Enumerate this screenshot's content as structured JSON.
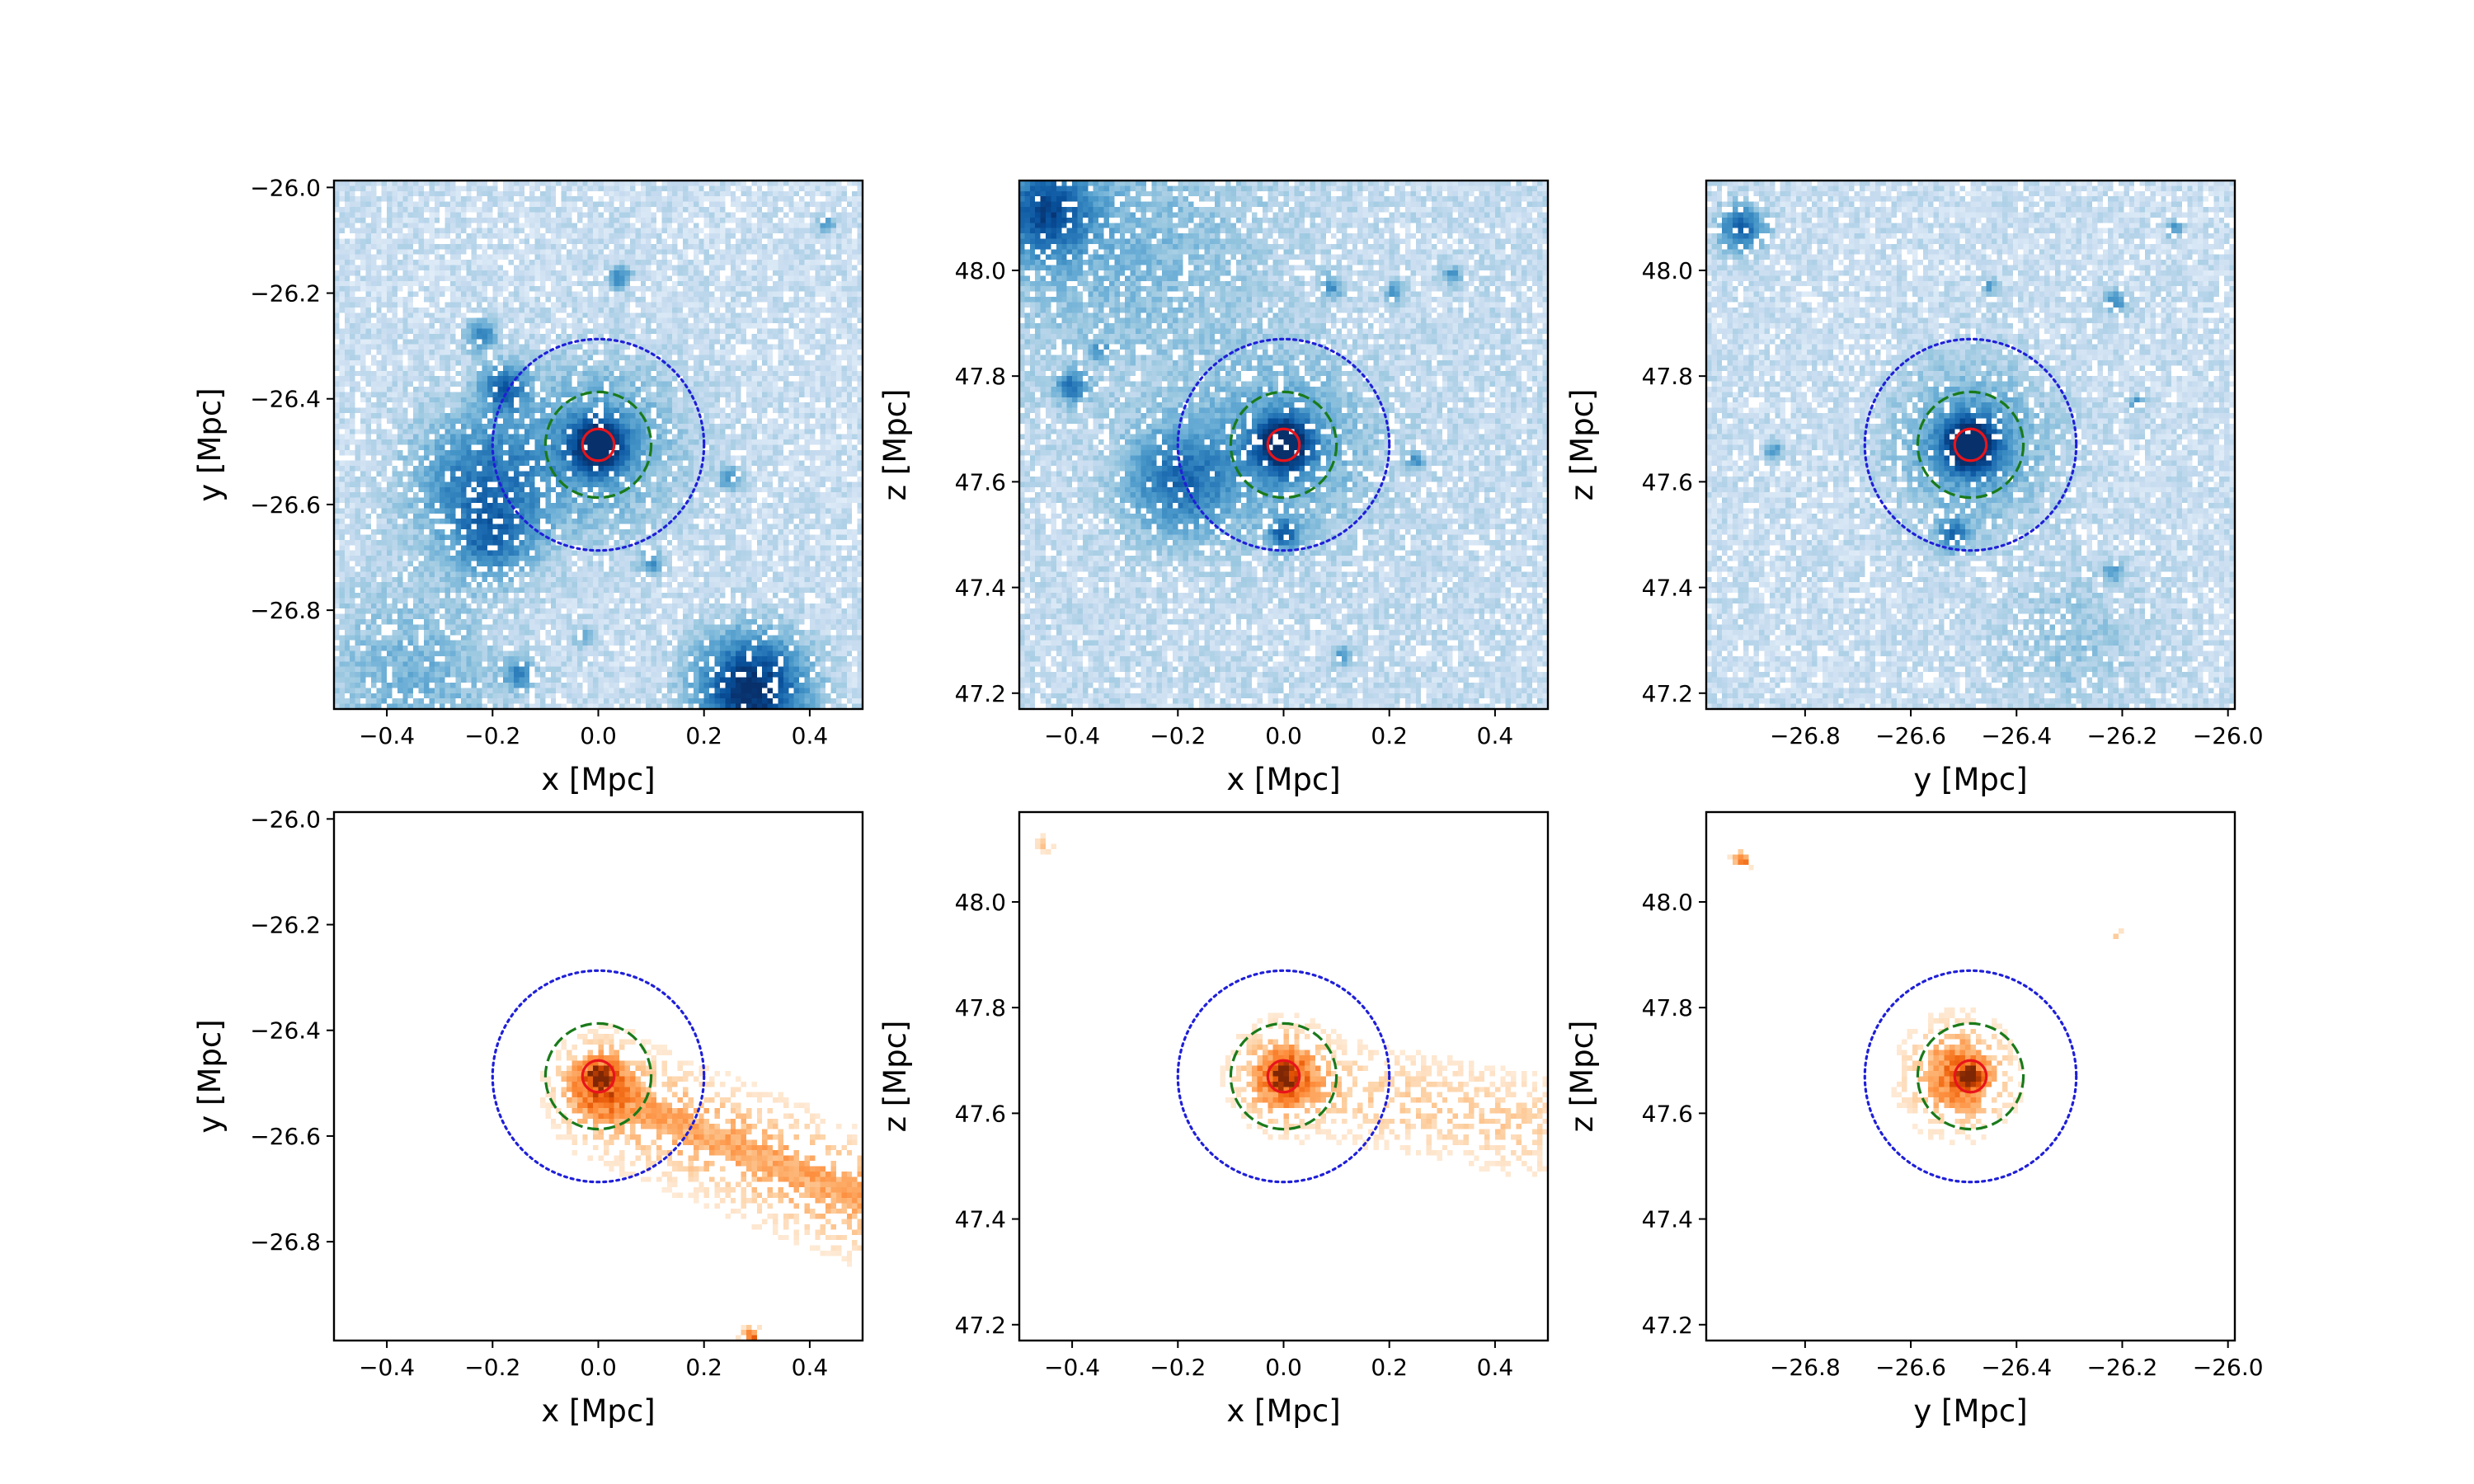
{
  "chart_data": [
    {
      "type": "heatmap",
      "name": "dm-xy",
      "row": "top",
      "colormap": "Blues",
      "xlabel": "x [Mpc]",
      "ylabel": "y [Mpc]",
      "xlim": [
        -0.5,
        0.5
      ],
      "ylim": [
        -26.987,
        -25.987
      ],
      "xticks": [
        {
          "value": -0.4,
          "label": "−0.4"
        },
        {
          "value": -0.2,
          "label": "−0.2"
        },
        {
          "value": 0.0,
          "label": "0.0"
        },
        {
          "value": 0.2,
          "label": "0.2"
        },
        {
          "value": 0.4,
          "label": "0.4"
        }
      ],
      "yticks": [
        {
          "value": -26.0,
          "label": "−26.0"
        },
        {
          "value": -26.2,
          "label": "−26.2"
        },
        {
          "value": -26.4,
          "label": "−26.4"
        },
        {
          "value": -26.6,
          "label": "−26.6"
        },
        {
          "value": -26.8,
          "label": "−26.8"
        }
      ],
      "center": [
        0.0,
        -26.487
      ],
      "circles": [
        {
          "name": "inner-radius",
          "radius": 0.03,
          "color": "#e8141b",
          "style": "solid"
        },
        {
          "name": "middle-radius",
          "radius": 0.1,
          "color": "#1a7a1a",
          "style": "dashed"
        },
        {
          "name": "outer-radius",
          "radius": 0.2,
          "color": "#1f1fd9",
          "style": "dotted"
        }
      ],
      "blobs": [
        {
          "x": 0.0,
          "y": -26.487,
          "sigma": 0.035,
          "amp": 1.0
        },
        {
          "x": 0.0,
          "y": -26.487,
          "sigma": 0.11,
          "amp": 0.35
        },
        {
          "x": -0.22,
          "y": -26.56,
          "sigma": 0.09,
          "amp": 0.55
        },
        {
          "x": -0.18,
          "y": -26.38,
          "sigma": 0.03,
          "amp": 0.6
        },
        {
          "x": -0.22,
          "y": -26.28,
          "sigma": 0.02,
          "amp": 0.5
        },
        {
          "x": -0.2,
          "y": -26.67,
          "sigma": 0.05,
          "amp": 0.4
        },
        {
          "x": 0.29,
          "y": -26.95,
          "sigma": 0.07,
          "amp": 1.0
        },
        {
          "x": 0.04,
          "y": -26.17,
          "sigma": 0.015,
          "amp": 0.5
        },
        {
          "x": -0.15,
          "y": -26.92,
          "sigma": 0.02,
          "amp": 0.45
        },
        {
          "x": 0.25,
          "y": -26.55,
          "sigma": 0.015,
          "amp": 0.45
        },
        {
          "x": 0.43,
          "y": -26.07,
          "sigma": 0.012,
          "amp": 0.4
        },
        {
          "x": 0.1,
          "y": -26.71,
          "sigma": 0.015,
          "amp": 0.4
        },
        {
          "x": -0.35,
          "y": -26.93,
          "sigma": 0.12,
          "amp": 0.25
        },
        {
          "x": -0.03,
          "y": -26.85,
          "sigma": 0.012,
          "amp": 0.4
        }
      ],
      "streams": [],
      "background": 0.12
    },
    {
      "type": "heatmap",
      "name": "dm-xz",
      "row": "top",
      "colormap": "Blues",
      "xlabel": "x [Mpc]",
      "ylabel": "z [Mpc]",
      "xlim": [
        -0.5,
        0.5
      ],
      "ylim": [
        47.17,
        48.17
      ],
      "xticks": [
        {
          "value": -0.4,
          "label": "−0.4"
        },
        {
          "value": -0.2,
          "label": "−0.2"
        },
        {
          "value": 0.0,
          "label": "0.0"
        },
        {
          "value": 0.2,
          "label": "0.2"
        },
        {
          "value": 0.4,
          "label": "0.4"
        }
      ],
      "yticks": [
        {
          "value": 47.2,
          "label": "47.2"
        },
        {
          "value": 47.4,
          "label": "47.4"
        },
        {
          "value": 47.6,
          "label": "47.6"
        },
        {
          "value": 47.8,
          "label": "47.8"
        },
        {
          "value": 48.0,
          "label": "48.0"
        }
      ],
      "center": [
        0.0,
        47.67
      ],
      "circles": [
        {
          "name": "inner-radius",
          "radius": 0.03,
          "color": "#e8141b",
          "style": "solid"
        },
        {
          "name": "middle-radius",
          "radius": 0.1,
          "color": "#1a7a1a",
          "style": "dashed"
        },
        {
          "name": "outer-radius",
          "radius": 0.2,
          "color": "#1f1fd9",
          "style": "dotted"
        }
      ],
      "blobs": [
        {
          "x": 0.0,
          "y": 47.67,
          "sigma": 0.035,
          "amp": 1.0
        },
        {
          "x": 0.0,
          "y": 47.67,
          "sigma": 0.11,
          "amp": 0.35
        },
        {
          "x": -0.2,
          "y": 47.6,
          "sigma": 0.07,
          "amp": 0.55
        },
        {
          "x": 0.0,
          "y": 47.5,
          "sigma": 0.02,
          "amp": 0.6
        },
        {
          "x": -0.4,
          "y": 47.78,
          "sigma": 0.02,
          "amp": 0.55
        },
        {
          "x": -0.45,
          "y": 48.11,
          "sigma": 0.06,
          "amp": 0.7
        },
        {
          "x": -0.35,
          "y": 47.85,
          "sigma": 0.012,
          "amp": 0.4
        },
        {
          "x": 0.09,
          "y": 47.97,
          "sigma": 0.015,
          "amp": 0.4
        },
        {
          "x": 0.21,
          "y": 47.96,
          "sigma": 0.012,
          "amp": 0.4
        },
        {
          "x": 0.32,
          "y": 47.99,
          "sigma": 0.012,
          "amp": 0.4
        },
        {
          "x": 0.25,
          "y": 47.64,
          "sigma": 0.012,
          "amp": 0.4
        },
        {
          "x": 0.11,
          "y": 47.27,
          "sigma": 0.012,
          "amp": 0.4
        },
        {
          "x": -0.3,
          "y": 48.05,
          "sigma": 0.18,
          "amp": 0.2
        }
      ],
      "streams": [],
      "background": 0.14
    },
    {
      "type": "heatmap",
      "name": "dm-yz",
      "row": "top",
      "colormap": "Blues",
      "xlabel": "y [Mpc]",
      "ylabel": "z [Mpc]",
      "xlim": [
        -26.987,
        -25.987
      ],
      "ylim": [
        47.17,
        48.17
      ],
      "xticks": [
        {
          "value": -26.8,
          "label": "−26.8"
        },
        {
          "value": -26.6,
          "label": "−26.6"
        },
        {
          "value": -26.4,
          "label": "−26.4"
        },
        {
          "value": -26.2,
          "label": "−26.2"
        },
        {
          "value": -26.0,
          "label": "−26.0"
        }
      ],
      "yticks": [
        {
          "value": 47.2,
          "label": "47.2"
        },
        {
          "value": 47.4,
          "label": "47.4"
        },
        {
          "value": 47.6,
          "label": "47.6"
        },
        {
          "value": 47.8,
          "label": "47.8"
        },
        {
          "value": 48.0,
          "label": "48.0"
        }
      ],
      "center": [
        -26.487,
        47.67
      ],
      "circles": [
        {
          "name": "inner-radius",
          "radius": 0.03,
          "color": "#e8141b",
          "style": "solid"
        },
        {
          "name": "middle-radius",
          "radius": 0.1,
          "color": "#1a7a1a",
          "style": "dashed"
        },
        {
          "name": "outer-radius",
          "radius": 0.2,
          "color": "#1f1fd9",
          "style": "dotted"
        }
      ],
      "blobs": [
        {
          "x": -26.487,
          "y": 47.67,
          "sigma": 0.035,
          "amp": 1.0
        },
        {
          "x": -26.487,
          "y": 47.67,
          "sigma": 0.1,
          "amp": 0.4
        },
        {
          "x": -26.52,
          "y": 47.5,
          "sigma": 0.02,
          "amp": 0.6
        },
        {
          "x": -26.92,
          "y": 48.08,
          "sigma": 0.03,
          "amp": 0.7
        },
        {
          "x": -26.21,
          "y": 47.94,
          "sigma": 0.015,
          "amp": 0.5
        },
        {
          "x": -26.1,
          "y": 48.08,
          "sigma": 0.012,
          "amp": 0.4
        },
        {
          "x": -26.17,
          "y": 47.75,
          "sigma": 0.012,
          "amp": 0.4
        },
        {
          "x": -26.86,
          "y": 47.66,
          "sigma": 0.012,
          "amp": 0.4
        },
        {
          "x": -26.22,
          "y": 47.43,
          "sigma": 0.012,
          "amp": 0.4
        },
        {
          "x": -26.45,
          "y": 47.97,
          "sigma": 0.01,
          "amp": 0.35
        },
        {
          "x": -26.3,
          "y": 47.3,
          "sigma": 0.1,
          "amp": 0.15
        }
      ],
      "streams": [],
      "background": 0.12
    },
    {
      "type": "heatmap",
      "name": "stars-xy",
      "row": "bottom",
      "colormap": "Oranges",
      "xlabel": "x [Mpc]",
      "ylabel": "y [Mpc]",
      "xlim": [
        -0.5,
        0.5
      ],
      "ylim": [
        -26.987,
        -25.987
      ],
      "xticks": [
        {
          "value": -0.4,
          "label": "−0.4"
        },
        {
          "value": -0.2,
          "label": "−0.2"
        },
        {
          "value": 0.0,
          "label": "0.0"
        },
        {
          "value": 0.2,
          "label": "0.2"
        },
        {
          "value": 0.4,
          "label": "0.4"
        }
      ],
      "yticks": [
        {
          "value": -26.0,
          "label": "−26.0"
        },
        {
          "value": -26.2,
          "label": "−26.2"
        },
        {
          "value": -26.4,
          "label": "−26.4"
        },
        {
          "value": -26.6,
          "label": "−26.6"
        },
        {
          "value": -26.8,
          "label": "−26.8"
        }
      ],
      "center": [
        0.0,
        -26.487
      ],
      "circles": [
        {
          "name": "inner-radius",
          "radius": 0.03,
          "color": "#e8141b",
          "style": "solid"
        },
        {
          "name": "middle-radius",
          "radius": 0.1,
          "color": "#1a7a1a",
          "style": "dashed"
        },
        {
          "name": "outer-radius",
          "radius": 0.2,
          "color": "#1f1fd9",
          "style": "dotted"
        }
      ],
      "blobs": [
        {
          "x": 0.0,
          "y": -26.487,
          "sigma": 0.012,
          "amp": 1.0
        },
        {
          "x": 0.0,
          "y": -26.5,
          "sigma": 0.04,
          "amp": 0.45
        },
        {
          "x": 0.29,
          "y": -26.98,
          "sigma": 0.01,
          "amp": 0.7
        }
      ],
      "streams": [
        {
          "x0": 0.03,
          "y0": -26.53,
          "x1": 0.5,
          "y1": -26.72,
          "width": 0.055,
          "amp": 0.28
        }
      ],
      "background": 0.0
    },
    {
      "type": "heatmap",
      "name": "stars-xz",
      "row": "bottom",
      "colormap": "Oranges",
      "xlabel": "x [Mpc]",
      "ylabel": "z [Mpc]",
      "xlim": [
        -0.5,
        0.5
      ],
      "ylim": [
        47.17,
        48.17
      ],
      "xticks": [
        {
          "value": -0.4,
          "label": "−0.4"
        },
        {
          "value": -0.2,
          "label": "−0.2"
        },
        {
          "value": 0.0,
          "label": "0.0"
        },
        {
          "value": 0.2,
          "label": "0.2"
        },
        {
          "value": 0.4,
          "label": "0.4"
        }
      ],
      "yticks": [
        {
          "value": 47.2,
          "label": "47.2"
        },
        {
          "value": 47.4,
          "label": "47.4"
        },
        {
          "value": 47.6,
          "label": "47.6"
        },
        {
          "value": 47.8,
          "label": "47.8"
        },
        {
          "value": 48.0,
          "label": "48.0"
        }
      ],
      "center": [
        0.0,
        47.67
      ],
      "circles": [
        {
          "name": "inner-radius",
          "radius": 0.03,
          "color": "#e8141b",
          "style": "solid"
        },
        {
          "name": "middle-radius",
          "radius": 0.1,
          "color": "#1a7a1a",
          "style": "dashed"
        },
        {
          "name": "outer-radius",
          "radius": 0.2,
          "color": "#1f1fd9",
          "style": "dotted"
        }
      ],
      "blobs": [
        {
          "x": 0.0,
          "y": 47.67,
          "sigma": 0.012,
          "amp": 1.0
        },
        {
          "x": 0.0,
          "y": 47.67,
          "sigma": 0.045,
          "amp": 0.5
        },
        {
          "x": -0.45,
          "y": 48.11,
          "sigma": 0.008,
          "amp": 0.3
        }
      ],
      "streams": [
        {
          "x0": 0.02,
          "y0": 47.66,
          "x1": 0.45,
          "y1": 47.58,
          "width": 0.05,
          "amp": 0.14
        }
      ],
      "background": 0.0
    },
    {
      "type": "heatmap",
      "name": "stars-yz",
      "row": "bottom",
      "colormap": "Oranges",
      "xlabel": "y [Mpc]",
      "ylabel": "z [Mpc]",
      "xlim": [
        -26.987,
        -25.987
      ],
      "ylim": [
        47.17,
        48.17
      ],
      "xticks": [
        {
          "value": -26.8,
          "label": "−26.8"
        },
        {
          "value": -26.6,
          "label": "−26.6"
        },
        {
          "value": -26.4,
          "label": "−26.4"
        },
        {
          "value": -26.2,
          "label": "−26.2"
        },
        {
          "value": -26.0,
          "label": "−26.0"
        }
      ],
      "yticks": [
        {
          "value": 47.2,
          "label": "47.2"
        },
        {
          "value": 47.4,
          "label": "47.4"
        },
        {
          "value": 47.6,
          "label": "47.6"
        },
        {
          "value": 47.8,
          "label": "47.8"
        },
        {
          "value": 48.0,
          "label": "48.0"
        }
      ],
      "center": [
        -26.487,
        47.67
      ],
      "circles": [
        {
          "name": "inner-radius",
          "radius": 0.03,
          "color": "#e8141b",
          "style": "solid"
        },
        {
          "name": "middle-radius",
          "radius": 0.1,
          "color": "#1a7a1a",
          "style": "dashed"
        },
        {
          "name": "outer-radius",
          "radius": 0.2,
          "color": "#1f1fd9",
          "style": "dotted"
        }
      ],
      "blobs": [
        {
          "x": -26.487,
          "y": 47.67,
          "sigma": 0.012,
          "amp": 1.0
        },
        {
          "x": -26.51,
          "y": 47.67,
          "sigma": 0.05,
          "amp": 0.55
        },
        {
          "x": -26.92,
          "y": 48.08,
          "sigma": 0.01,
          "amp": 0.6
        },
        {
          "x": -26.21,
          "y": 47.94,
          "sigma": 0.006,
          "amp": 0.2
        }
      ],
      "streams": [],
      "background": 0.0
    }
  ]
}
